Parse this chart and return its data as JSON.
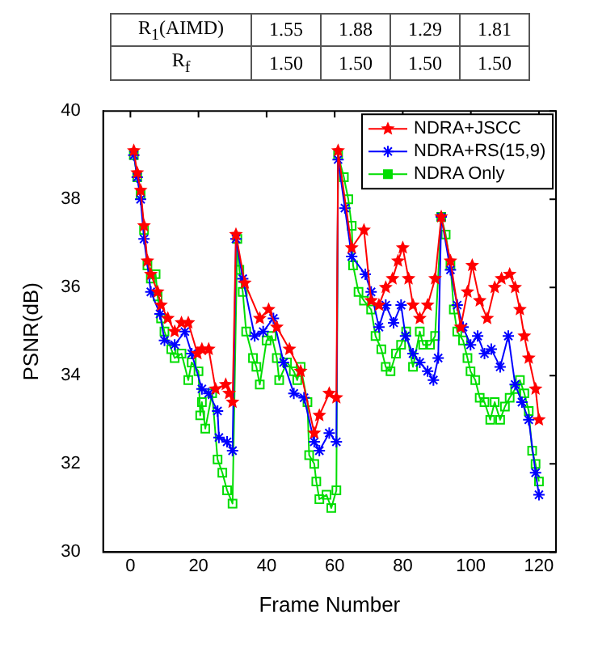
{
  "chart_data": {
    "type": "line",
    "xlabel": "Frame Number",
    "ylabel": "PSNR(dB)",
    "annotations": [
      "R$_{1}$(AIMD) 1.55 1.88 1.29 1.81",
      "R$_{f}$ 1.50 1.50 1.50 1.50"
    ],
    "xlim": [
      -8,
      125
    ],
    "xticks": [
      0,
      20,
      40,
      60,
      80,
      100,
      120
    ],
    "ylim": [
      30,
      40
    ],
    "yticks": [
      30,
      32,
      34,
      36,
      38,
      40
    ],
    "grid": false,
    "legend": "top right",
    "line_style": "solid",
    "series": [
      {
        "name": "NDRA+JSCC",
        "color": "#ff0000",
        "marker": "star",
        "x": [
          1,
          2,
          3,
          4,
          5,
          6,
          8,
          9,
          11,
          13,
          15,
          17,
          19.7,
          21,
          23,
          25,
          28,
          29,
          30,
          31,
          33.6,
          38,
          40.6,
          43,
          46.7,
          50,
          54,
          55.5,
          58.4,
          60.5,
          61,
          65,
          68.6,
          70.7,
          73,
          75,
          77,
          78.6,
          80,
          81.7,
          83,
          85,
          87.3,
          89.5,
          91.3,
          94,
          97,
          99,
          100.4,
          102.6,
          104.8,
          107,
          109,
          111.4,
          113,
          114.4,
          115.7,
          117,
          119,
          120
        ],
        "values": [
          39.1,
          38.6,
          38.2,
          37.4,
          36.6,
          36.3,
          35.9,
          35.6,
          35.3,
          35.0,
          35.2,
          35.2,
          34.5,
          34.6,
          34.6,
          33.7,
          33.8,
          33.6,
          33.4,
          37.2,
          36.1,
          35.3,
          35.5,
          35.1,
          34.6,
          34.1,
          32.7,
          33.1,
          33.6,
          33.5,
          39.1,
          36.9,
          37.3,
          35.7,
          35.6,
          36.0,
          36.2,
          36.6,
          36.9,
          36.2,
          35.6,
          35.3,
          35.6,
          36.2,
          37.6,
          36.6,
          35.1,
          35.9,
          36.5,
          35.7,
          35.3,
          36.0,
          36.2,
          36.3,
          36.0,
          35.5,
          34.9,
          34.4,
          33.7,
          33.0
        ]
      },
      {
        "name": "NDRA+RS(15,9)",
        "color": "#0000ff",
        "marker": "cross",
        "x": [
          1,
          2,
          3,
          4,
          6,
          8.7,
          10,
          13,
          16,
          18,
          21,
          23,
          25.6,
          26,
          28.4,
          30,
          31,
          33,
          36.5,
          39,
          42,
          45,
          48,
          51,
          54,
          55.5,
          58.4,
          60.5,
          61,
          63,
          65,
          69,
          70.7,
          73,
          75,
          77.3,
          79.5,
          80.8,
          83,
          85,
          87.3,
          89,
          90.4,
          91.3,
          94,
          96,
          97.7,
          99.9,
          102,
          104,
          106,
          108.6,
          111,
          113,
          115,
          117,
          119,
          120
        ],
        "values": [
          39.0,
          38.5,
          38.0,
          37.1,
          35.9,
          35.4,
          34.8,
          34.7,
          35.0,
          34.5,
          33.7,
          33.6,
          33.2,
          32.6,
          32.5,
          32.3,
          37.1,
          36.2,
          34.9,
          35.0,
          35.3,
          34.3,
          33.6,
          33.5,
          32.5,
          32.3,
          32.7,
          32.5,
          38.9,
          37.8,
          36.7,
          36.3,
          35.9,
          35.1,
          35.6,
          35.2,
          35.6,
          34.9,
          34.5,
          34.3,
          34.1,
          33.9,
          34.4,
          37.6,
          36.4,
          35.6,
          35.1,
          34.7,
          34.9,
          34.5,
          34.6,
          34.2,
          34.9,
          33.8,
          33.4,
          33.0,
          31.8,
          31.3
        ]
      },
      {
        "name": "NDRA Only",
        "color": "#00dd00",
        "marker": "square",
        "x": [
          1,
          2,
          3,
          4,
          5,
          6,
          7.4,
          8,
          9,
          10,
          12,
          13,
          15,
          17,
          18,
          20,
          20.5,
          21,
          22,
          24,
          25.6,
          27,
          28.4,
          30,
          31.4,
          32,
          33,
          34,
          36,
          37,
          38,
          40,
          41.5,
          43,
          43.7,
          46,
          48,
          49,
          50,
          52,
          52.5,
          54,
          54.6,
          55.5,
          57.6,
          59,
          60.5,
          61,
          62.7,
          64,
          65,
          65.4,
          67,
          68.6,
          70.7,
          72,
          73.7,
          75,
          76.4,
          78,
          79.5,
          81,
          83,
          85,
          86,
          88,
          89.5,
          91.3,
          92.6,
          94,
          95,
          96,
          97.7,
          99,
          99.9,
          101.3,
          102.6,
          104,
          105.7,
          107,
          108.6,
          110,
          111.4,
          113,
          114.4,
          115.7,
          117,
          118,
          119,
          120
        ],
        "values": [
          39.0,
          38.5,
          38.1,
          37.3,
          36.5,
          36.2,
          36.3,
          35.8,
          35.3,
          35.0,
          34.6,
          34.4,
          34.5,
          33.9,
          34.3,
          34.1,
          33.1,
          33.4,
          32.8,
          33.6,
          32.1,
          31.8,
          31.4,
          31.1,
          37.1,
          36.4,
          35.9,
          35.0,
          34.4,
          34.2,
          33.8,
          34.8,
          34.9,
          34.4,
          33.9,
          34.3,
          34.1,
          33.9,
          34.2,
          33.4,
          32.2,
          32.0,
          31.6,
          31.2,
          31.3,
          31.0,
          31.4,
          39.0,
          38.5,
          38.0,
          37.4,
          36.5,
          35.9,
          35.7,
          35.5,
          34.9,
          34.6,
          34.2,
          34.1,
          34.5,
          34.7,
          35.0,
          34.2,
          35.0,
          34.7,
          34.7,
          34.9,
          37.6,
          37.2,
          36.5,
          35.5,
          35.0,
          34.8,
          34.4,
          34.1,
          33.9,
          33.5,
          33.4,
          33.0,
          33.4,
          33.0,
          33.3,
          33.5,
          33.7,
          33.9,
          33.6,
          33.2,
          32.3,
          32.0,
          31.6
        ]
      }
    ]
  }
}
